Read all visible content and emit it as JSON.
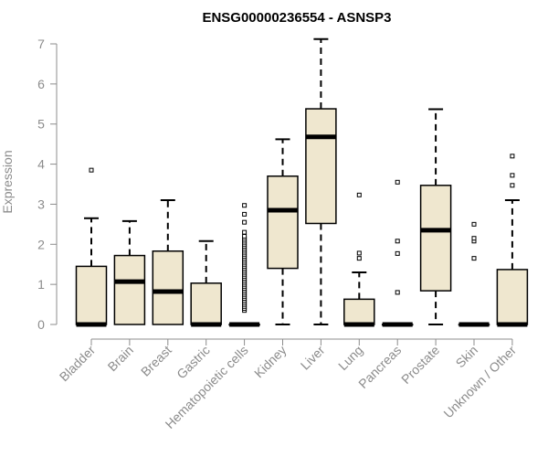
{
  "chart_data": {
    "type": "boxplot",
    "title": "ENSG00000236554 - ASNSP3",
    "ylabel": "Expression",
    "xlabel": "",
    "ylim": [
      0,
      7
    ],
    "yticks": [
      "0",
      "1",
      "2",
      "3",
      "4",
      "5",
      "6",
      "7"
    ],
    "categories": [
      "Bladder",
      "Brain",
      "Breast",
      "Gastric",
      "Hematopoietic cells",
      "Kidney",
      "Liver",
      "Lung",
      "Pancreas",
      "Prostate",
      "Skin",
      "Unknown / Other"
    ],
    "boxes": [
      {
        "min": 0,
        "q1": 0,
        "median": 0,
        "q3": 1.45,
        "max": 2.65,
        "outliers": [
          3.85
        ]
      },
      {
        "min": 0,
        "q1": 0,
        "median": 1.07,
        "q3": 1.72,
        "max": 2.58,
        "outliers": []
      },
      {
        "min": 0,
        "q1": 0,
        "median": 0.82,
        "q3": 1.83,
        "max": 3.1,
        "outliers": []
      },
      {
        "min": 0,
        "q1": 0,
        "median": 0,
        "q3": 1.03,
        "max": 2.08,
        "outliers": []
      },
      {
        "min": 0,
        "q1": 0,
        "median": 0,
        "q3": 0,
        "max": 0,
        "outliers": [
          0.35,
          0.4,
          0.45,
          0.5,
          0.55,
          0.6,
          0.65,
          0.7,
          0.75,
          0.8,
          0.85,
          0.9,
          0.95,
          1.0,
          1.05,
          1.1,
          1.15,
          1.2,
          1.25,
          1.3,
          1.35,
          1.4,
          1.45,
          1.5,
          1.55,
          1.6,
          1.65,
          1.7,
          1.75,
          1.8,
          1.85,
          1.9,
          1.95,
          2.0,
          2.05,
          2.1,
          2.15,
          2.2,
          2.3,
          2.55,
          2.75,
          2.97
        ]
      },
      {
        "min": 0,
        "q1": 1.4,
        "median": 2.85,
        "q3": 3.7,
        "max": 4.62,
        "outliers": []
      },
      {
        "min": 0,
        "q1": 2.52,
        "median": 4.68,
        "q3": 5.38,
        "max": 7.12,
        "outliers": []
      },
      {
        "min": 0,
        "q1": 0,
        "median": 0,
        "q3": 0.63,
        "max": 1.3,
        "outliers": [
          1.65,
          1.78,
          3.23
        ]
      },
      {
        "min": 0,
        "q1": 0,
        "median": 0,
        "q3": 0,
        "max": 0,
        "outliers": [
          0.8,
          1.77,
          2.08,
          3.55
        ]
      },
      {
        "min": 0,
        "q1": 0.84,
        "median": 2.35,
        "q3": 3.47,
        "max": 5.37,
        "outliers": []
      },
      {
        "min": 0,
        "q1": 0,
        "median": 0,
        "q3": 0,
        "max": 0,
        "outliers": [
          1.65,
          2.08,
          2.15,
          2.5
        ]
      },
      {
        "min": 0,
        "q1": 0,
        "median": 0,
        "q3": 1.37,
        "max": 3.1,
        "outliers": [
          3.47,
          3.72,
          4.2
        ]
      }
    ],
    "box_fill": "#efe7cf",
    "grid": false,
    "legend": "none"
  }
}
